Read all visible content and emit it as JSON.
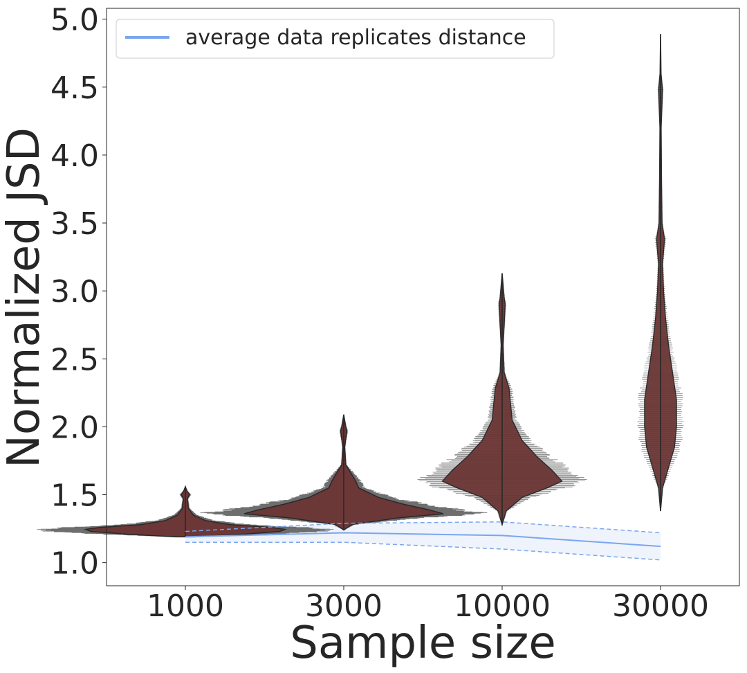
{
  "chart_data": {
    "type": "violin",
    "xlabel": "Sample size",
    "ylabel": "Normalized JSD",
    "categories": [
      "1000",
      "3000",
      "10000",
      "30000"
    ],
    "yticks": [
      "1.0",
      "1.5",
      "2.0",
      "2.5",
      "3.0",
      "3.5",
      "4.0",
      "4.5",
      "5.0"
    ],
    "ylim": [
      0.83,
      5.08
    ],
    "grid": false,
    "legend": {
      "position": "top-left",
      "entries": [
        "average data replicates distance"
      ]
    },
    "colors": {
      "violin_fill": "#6b3535",
      "violin_edge": "#262626",
      "violin_halo": "#e8877a",
      "swarm": "#555555",
      "avg_line": "#7aa6ee",
      "band_fill": "#eef3fc"
    },
    "violins": [
      {
        "category": "1000",
        "min": 1.19,
        "max": 1.56,
        "width_profile": [
          [
            1.19,
            0.1
          ],
          [
            1.21,
            0.6
          ],
          [
            1.23,
            0.95
          ],
          [
            1.245,
            1.0
          ],
          [
            1.26,
            0.85
          ],
          [
            1.28,
            0.45
          ],
          [
            1.31,
            0.2
          ],
          [
            1.35,
            0.08
          ],
          [
            1.4,
            0.03
          ],
          [
            1.47,
            0.02
          ],
          [
            1.5,
            0.04
          ],
          [
            1.53,
            0.015
          ],
          [
            1.56,
            0.0
          ]
        ]
      },
      {
        "category": "3000",
        "min": 1.24,
        "max": 2.09,
        "width_profile": [
          [
            1.24,
            0.0
          ],
          [
            1.28,
            0.08
          ],
          [
            1.33,
            0.55
          ],
          [
            1.36,
            1.0
          ],
          [
            1.39,
            0.85
          ],
          [
            1.43,
            0.6
          ],
          [
            1.48,
            0.35
          ],
          [
            1.55,
            0.15
          ],
          [
            1.6,
            0.12
          ],
          [
            1.65,
            0.08
          ],
          [
            1.72,
            0.02
          ],
          [
            1.85,
            0.01
          ],
          [
            1.97,
            0.03
          ],
          [
            2.0,
            0.02
          ],
          [
            2.09,
            0.0
          ]
        ]
      },
      {
        "category": "10000",
        "min": 1.28,
        "max": 3.13,
        "width_profile": [
          [
            1.28,
            0.0
          ],
          [
            1.38,
            0.04
          ],
          [
            1.48,
            0.2
          ],
          [
            1.55,
            0.45
          ],
          [
            1.6,
            0.6
          ],
          [
            1.68,
            0.5
          ],
          [
            1.78,
            0.35
          ],
          [
            1.9,
            0.2
          ],
          [
            2.05,
            0.1
          ],
          [
            2.2,
            0.08
          ],
          [
            2.28,
            0.07
          ],
          [
            2.4,
            0.02
          ],
          [
            2.6,
            0.01
          ],
          [
            2.9,
            0.03
          ],
          [
            2.95,
            0.02
          ],
          [
            3.13,
            0.0
          ]
        ]
      },
      {
        "category": "30000",
        "min": 1.38,
        "max": 4.89,
        "width_profile": [
          [
            1.38,
            0.0
          ],
          [
            1.55,
            0.02
          ],
          [
            1.7,
            0.08
          ],
          [
            1.85,
            0.14
          ],
          [
            2.0,
            0.16
          ],
          [
            2.2,
            0.16
          ],
          [
            2.4,
            0.12
          ],
          [
            2.6,
            0.08
          ],
          [
            2.8,
            0.05
          ],
          [
            3.0,
            0.03
          ],
          [
            3.2,
            0.02
          ],
          [
            3.38,
            0.04
          ],
          [
            3.5,
            0.015
          ],
          [
            3.8,
            0.01
          ],
          [
            4.2,
            0.006
          ],
          [
            4.48,
            0.02
          ],
          [
            4.6,
            0.005
          ],
          [
            4.89,
            0.0
          ]
        ]
      }
    ],
    "avg_line": {
      "x": [
        "1000",
        "3000",
        "10000",
        "30000"
      ],
      "mean": [
        1.19,
        1.22,
        1.2,
        1.12
      ],
      "upper": [
        1.23,
        1.29,
        1.3,
        1.22
      ],
      "lower": [
        1.15,
        1.15,
        1.1,
        1.02
      ]
    }
  }
}
